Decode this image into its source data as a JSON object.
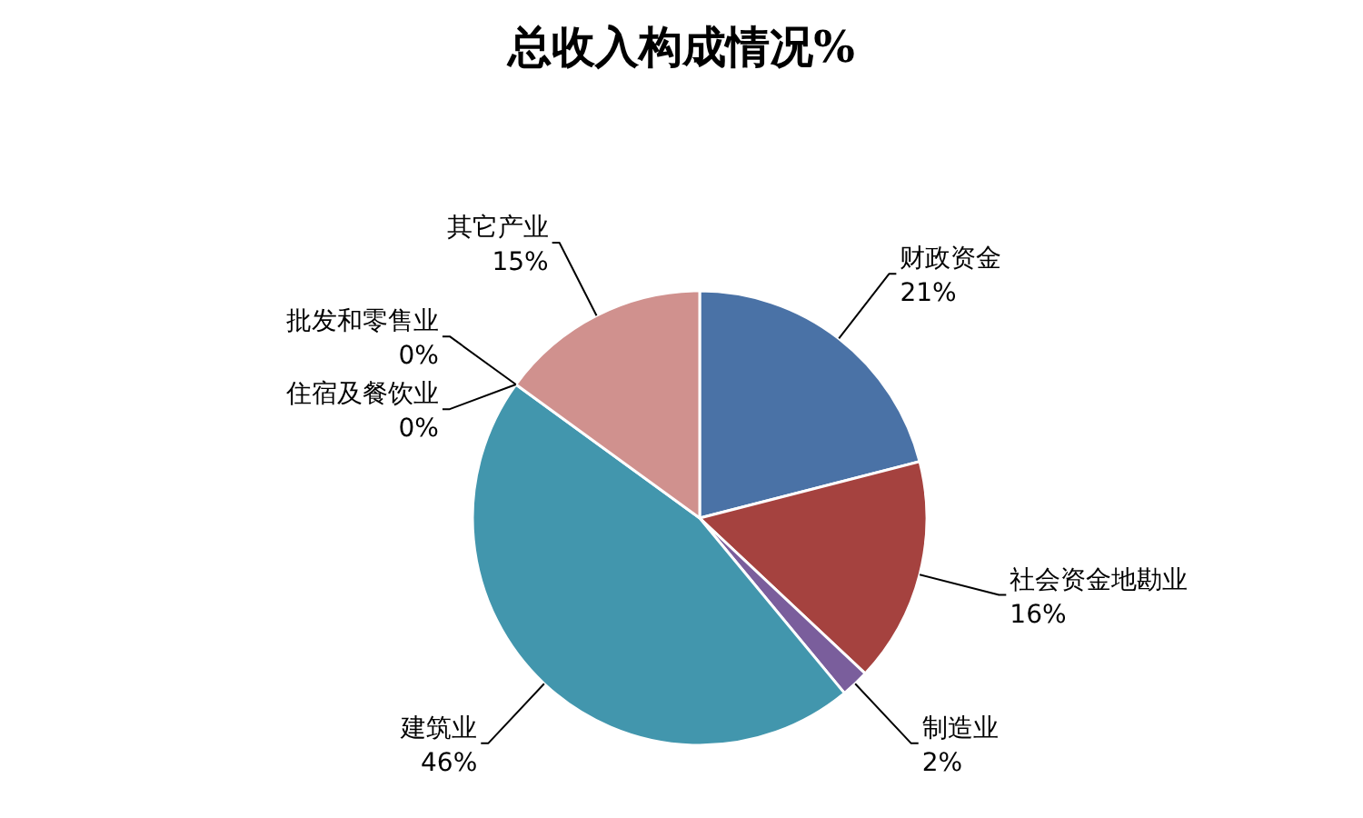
{
  "chart_data": {
    "type": "pie",
    "title": "总收入构成情况%",
    "categories": [
      "财政资金",
      "社会资金地勘业",
      "制造业",
      "建筑业",
      "批发和零售业",
      "住宿及餐饮业",
      "其它产业"
    ],
    "values": [
      21,
      16,
      2,
      46,
      0,
      0,
      15
    ],
    "colors": [
      "#4a72a6",
      "#a5423f",
      "#7a5e9c",
      "#4296ad",
      "#d47a2e",
      "#8d9bc4",
      "#d0918e"
    ],
    "value_labels": [
      "21%",
      "16%",
      "2%",
      "46%",
      "0%",
      "0%",
      "15%"
    ]
  }
}
